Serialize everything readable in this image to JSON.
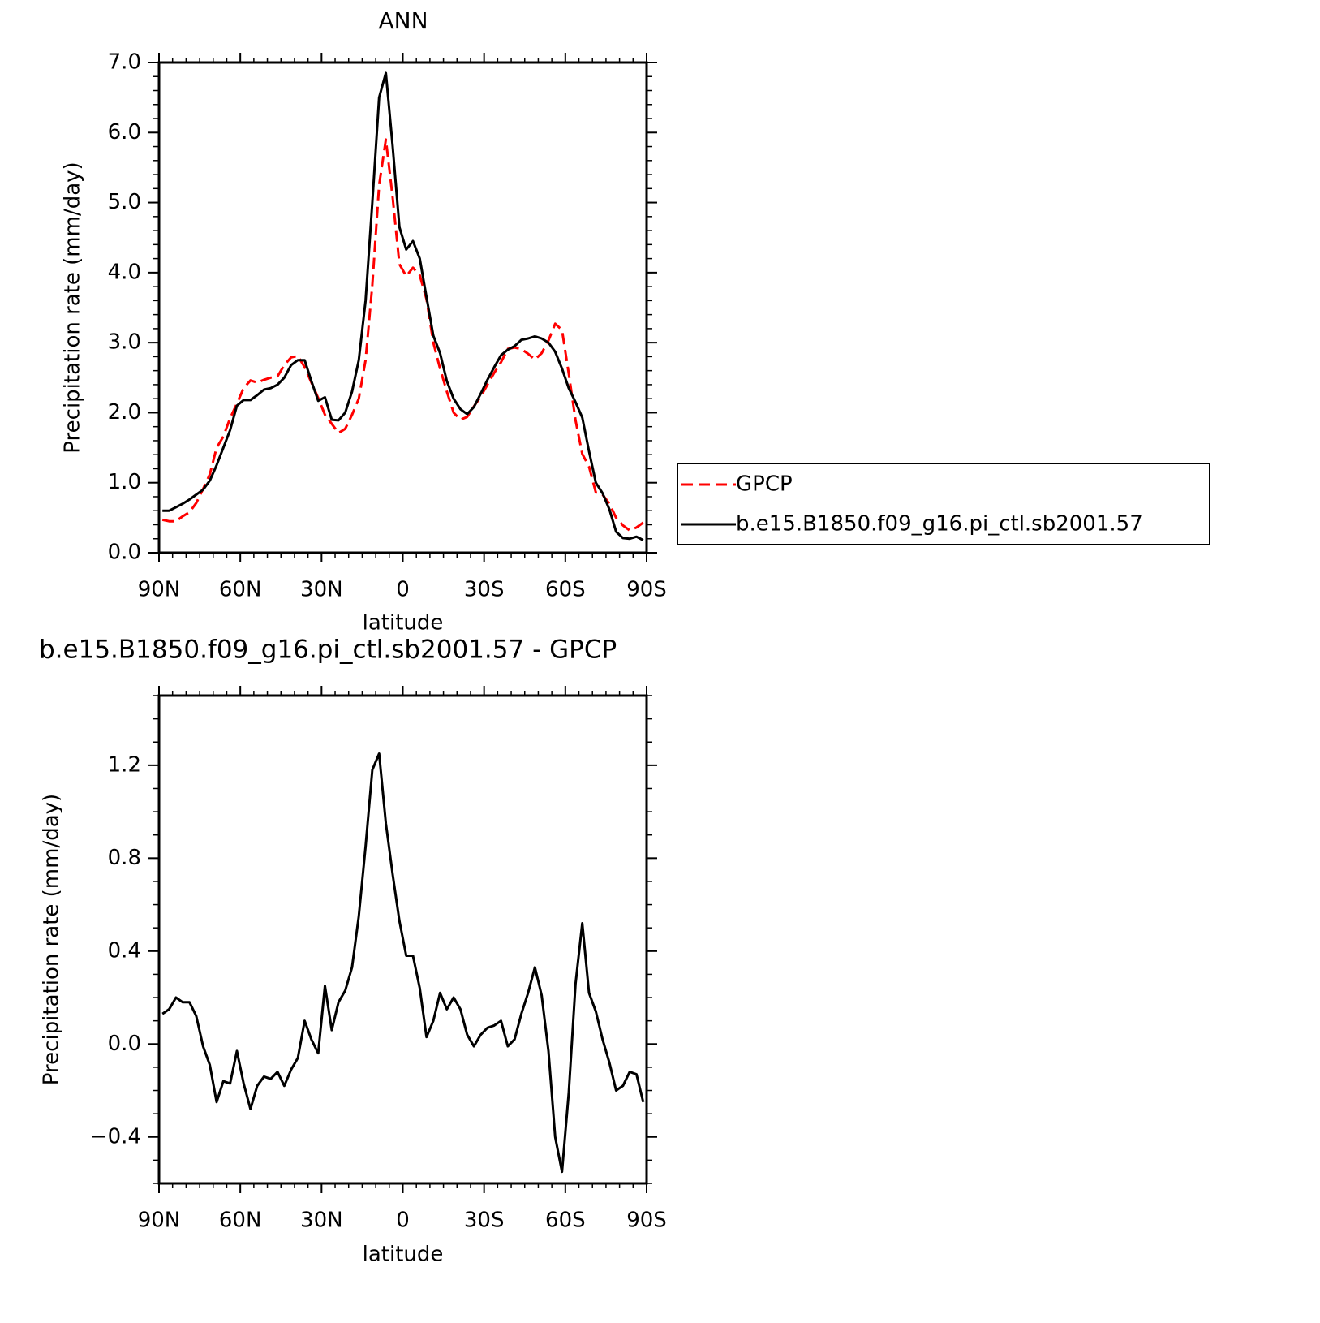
{
  "chart_data": [
    {
      "type": "line",
      "title": "ANN",
      "xlabel": "latitude",
      "ylabel": "Precipitation rate (mm/day)",
      "xlim": [
        90,
        -90
      ],
      "xticks": [
        {
          "value": 90,
          "label": "90N"
        },
        {
          "value": 60,
          "label": "60N"
        },
        {
          "value": 30,
          "label": "30N"
        },
        0,
        {
          "value": -30,
          "label": "30S"
        },
        {
          "value": -60,
          "label": "60S"
        },
        {
          "value": -90,
          "label": "90S"
        }
      ],
      "ylim": [
        0,
        7
      ],
      "yticks": [
        {
          "value": 0,
          "label": "0.0"
        },
        {
          "value": 1,
          "label": "1.0"
        },
        {
          "value": 2,
          "label": "2.0"
        },
        {
          "value": 3,
          "label": "3.0"
        },
        {
          "value": 4,
          "label": "4.0"
        },
        {
          "value": 5,
          "label": "5.0"
        },
        {
          "value": 6,
          "label": "6.0"
        },
        {
          "value": 7,
          "label": "7.0"
        }
      ],
      "legend": "right",
      "x": [
        88.75,
        86.25,
        83.75,
        81.25,
        78.75,
        76.25,
        73.75,
        71.25,
        68.75,
        66.25,
        63.75,
        61.25,
        58.75,
        56.25,
        53.75,
        51.25,
        48.75,
        46.25,
        43.75,
        41.25,
        38.75,
        36.25,
        33.75,
        31.25,
        28.75,
        26.25,
        23.75,
        21.25,
        18.75,
        16.25,
        13.75,
        11.25,
        8.75,
        6.25,
        3.75,
        1.25,
        -1.25,
        -3.75,
        -6.25,
        -8.75,
        -11.25,
        -13.75,
        -16.25,
        -18.75,
        -21.25,
        -23.75,
        -26.25,
        -28.75,
        -31.25,
        -33.75,
        -36.25,
        -38.75,
        -41.25,
        -43.75,
        -46.25,
        -48.75,
        -51.25,
        -53.75,
        -56.25,
        -58.75,
        -61.25,
        -63.75,
        -66.25,
        -68.75,
        -71.25,
        -73.75,
        -76.25,
        -78.75,
        -81.25,
        -83.75,
        -86.25,
        -88.75
      ],
      "series": [
        {
          "name": "GPCP",
          "color": "#ff0000",
          "dash": "dashed",
          "values": [
            0.47,
            0.45,
            0.45,
            0.52,
            0.58,
            0.71,
            0.91,
            1.12,
            1.5,
            1.66,
            1.92,
            2.13,
            2.35,
            2.46,
            2.43,
            2.47,
            2.5,
            2.52,
            2.68,
            2.79,
            2.81,
            2.65,
            2.43,
            2.21,
            1.97,
            1.84,
            1.71,
            1.77,
            1.97,
            2.2,
            2.75,
            3.82,
            5.25,
            5.9,
            5.07,
            4.12,
            3.95,
            4.07,
            3.96,
            3.62,
            3.0,
            2.63,
            2.3,
            2.0,
            1.9,
            1.94,
            2.09,
            2.23,
            2.4,
            2.57,
            2.72,
            2.91,
            2.93,
            2.91,
            2.84,
            2.76,
            2.85,
            3.03,
            3.27,
            3.18,
            2.56,
            1.89,
            1.41,
            1.23,
            0.86,
            0.83,
            0.7,
            0.5,
            0.39,
            0.32,
            0.36,
            0.43
          ]
        },
        {
          "name": "b.e15.B1850.f09_g16.pi_ctl.sb2001.57",
          "color": "#000000",
          "dash": "solid",
          "values": [
            0.6,
            0.6,
            0.65,
            0.7,
            0.76,
            0.83,
            0.9,
            1.03,
            1.25,
            1.5,
            1.75,
            2.1,
            2.18,
            2.18,
            2.25,
            2.33,
            2.35,
            2.4,
            2.5,
            2.68,
            2.75,
            2.75,
            2.45,
            2.17,
            2.22,
            1.9,
            1.89,
            2.0,
            2.3,
            2.75,
            3.6,
            5.0,
            6.5,
            6.85,
            5.8,
            4.65,
            4.33,
            4.45,
            4.2,
            3.65,
            3.1,
            2.85,
            2.45,
            2.2,
            2.05,
            1.98,
            2.08,
            2.27,
            2.47,
            2.65,
            2.82,
            2.9,
            2.95,
            3.04,
            3.06,
            3.09,
            3.06,
            3.0,
            2.87,
            2.63,
            2.35,
            2.15,
            1.93,
            1.45,
            1.0,
            0.85,
            0.62,
            0.3,
            0.21,
            0.2,
            0.23,
            0.18
          ]
        }
      ]
    },
    {
      "type": "line",
      "title": "b.e15.B1850.f09_g16.pi_ctl.sb2001.57 - GPCP",
      "xlabel": "latitude",
      "ylabel": "Precipitation rate (mm/day)",
      "xlim": [
        90,
        -90
      ],
      "xticks": [
        {
          "value": 90,
          "label": "90N"
        },
        {
          "value": 60,
          "label": "60N"
        },
        {
          "value": 30,
          "label": "30N"
        },
        0,
        {
          "value": -30,
          "label": "30S"
        },
        {
          "value": -60,
          "label": "60S"
        },
        {
          "value": -90,
          "label": "90S"
        }
      ],
      "ylim": [
        -0.6,
        1.5
      ],
      "yticks": [
        {
          "value": -0.4,
          "label": "−0.4"
        },
        {
          "value": 0,
          "label": "0.0"
        },
        0.4,
        0.8,
        1.2
      ],
      "x": [
        88.75,
        86.25,
        83.75,
        81.25,
        78.75,
        76.25,
        73.75,
        71.25,
        68.75,
        66.25,
        63.75,
        61.25,
        58.75,
        56.25,
        53.75,
        51.25,
        48.75,
        46.25,
        43.75,
        41.25,
        38.75,
        36.25,
        33.75,
        31.25,
        28.75,
        26.25,
        23.75,
        21.25,
        18.75,
        16.25,
        13.75,
        11.25,
        8.75,
        6.25,
        3.75,
        1.25,
        -1.25,
        -3.75,
        -6.25,
        -8.75,
        -11.25,
        -13.75,
        -16.25,
        -18.75,
        -21.25,
        -23.75,
        -26.25,
        -28.75,
        -31.25,
        -33.75,
        -36.25,
        -38.75,
        -41.25,
        -43.75,
        -46.25,
        -48.75,
        -51.25,
        -53.75,
        -56.25,
        -58.75,
        -61.25,
        -63.75,
        -66.25,
        -68.75,
        -71.25,
        -73.75,
        -76.25,
        -78.75,
        -81.25,
        -83.75,
        -86.25,
        -88.75
      ],
      "series": [
        {
          "color": "#000000",
          "dash": "solid",
          "values": [
            0.13,
            0.15,
            0.2,
            0.18,
            0.18,
            0.12,
            -0.01,
            -0.09,
            -0.25,
            -0.16,
            -0.17,
            -0.03,
            -0.17,
            -0.28,
            -0.18,
            -0.14,
            -0.15,
            -0.12,
            -0.18,
            -0.11,
            -0.06,
            0.1,
            0.02,
            -0.04,
            0.25,
            0.06,
            0.18,
            0.23,
            0.33,
            0.55,
            0.85,
            1.18,
            1.25,
            0.95,
            0.73,
            0.53,
            0.38,
            0.38,
            0.24,
            0.03,
            0.1,
            0.22,
            0.15,
            0.2,
            0.15,
            0.04,
            -0.01,
            0.04,
            0.07,
            0.08,
            0.1,
            -0.01,
            0.02,
            0.13,
            0.22,
            0.33,
            0.21,
            -0.03,
            -0.4,
            -0.55,
            -0.21,
            0.26,
            0.52,
            0.22,
            0.14,
            0.02,
            -0.08,
            -0.2,
            -0.18,
            -0.12,
            -0.13,
            -0.25
          ]
        }
      ]
    }
  ]
}
